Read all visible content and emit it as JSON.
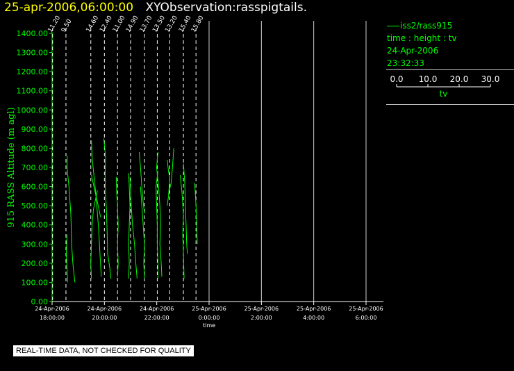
{
  "header": {
    "date_time": "25-apr-2006,06:00:00",
    "name": "XYObservation:rasspigtails."
  },
  "legend": {
    "series": "iss2/rass915",
    "axes": "time : height : tv",
    "date": "24-Apr-2006",
    "time": "23:32:33",
    "scale_ticks": [
      "0.0",
      "10.0",
      "20.0",
      "30.0"
    ],
    "scale_label": "tv"
  },
  "footer": {
    "notice": "REAL-TIME DATA, NOT CHECKED FOR QUALITY"
  },
  "colors": {
    "background": "#000000",
    "series": "#00ff00",
    "grid": "#ffffff",
    "title_date": "#ffff00"
  },
  "chart_data": {
    "type": "line",
    "ylabel": "915 RASS Altitude (m agl)",
    "xlabel": "time",
    "ylim": [
      0,
      1400
    ],
    "y_ticks": [
      "0.00",
      "100.00",
      "200.00",
      "300.00",
      "400.00",
      "500.00",
      "600.00",
      "700.00",
      "800.00",
      "900.00",
      "1000.00",
      "1100.00",
      "1200.00",
      "1300.00",
      "1400.00"
    ],
    "x_ticks": [
      {
        "date": "24-Apr-2006",
        "time": "18:00:00",
        "hours": 0
      },
      {
        "date": "24-Apr-2006",
        "time": "20:00:00",
        "hours": 2
      },
      {
        "date": "24-Apr-2006",
        "time": "22:00:00",
        "hours": 4
      },
      {
        "date": "25-Apr-2006",
        "time": "0:00:00",
        "hours": 6
      },
      {
        "date": "25-Apr-2006",
        "time": "2:00:00",
        "hours": 8
      },
      {
        "date": "25-Apr-2006",
        "time": "4:00:00",
        "hours": 10
      },
      {
        "date": "25-Apr-2006",
        "time": "6:00:00",
        "hours": 12
      }
    ],
    "xlim_hours": [
      0,
      12
    ],
    "grid": true,
    "profile_base_values": [
      {
        "label": "11.20",
        "hours": 0.02
      },
      {
        "label": "9.50",
        "hours": 0.53
      },
      {
        "label": "14.60",
        "hours": 1.48
      },
      {
        "label": "12.40",
        "hours": 2.0
      },
      {
        "label": "11.00",
        "hours": 2.5
      },
      {
        "label": "14.90",
        "hours": 3.0
      },
      {
        "label": "13.70",
        "hours": 3.53
      },
      {
        "label": "13.50",
        "hours": 4.02
      },
      {
        "label": "13.20",
        "hours": 4.5
      },
      {
        "label": "15.40",
        "hours": 5.02
      },
      {
        "label": "15.80",
        "hours": 5.5
      }
    ],
    "tv_per_hour": 20,
    "series": [
      {
        "base_hours": 0.02,
        "points": [
          [
            11.2,
            760
          ],
          [
            11.0,
            700
          ],
          [
            12.5,
            600
          ],
          [
            14.0,
            450
          ],
          [
            14.5,
            300
          ],
          [
            15.5,
            200
          ],
          [
            17.0,
            100
          ]
        ]
      },
      {
        "base_hours": 0.02,
        "points": [
          [
            11.0,
            350
          ],
          [
            10.5,
            250
          ],
          [
            11.5,
            100
          ]
        ]
      },
      {
        "base_hours": 0.53,
        "points": [
          [
            19.5,
            660
          ],
          [
            22.0,
            580
          ],
          [
            24.0,
            520
          ],
          [
            26.5,
            440
          ]
        ]
      },
      {
        "base_hours": 1.48,
        "points": [
          [
            0.5,
            840
          ],
          [
            1.0,
            750
          ],
          [
            2.5,
            650
          ],
          [
            4.0,
            550
          ],
          [
            5.0,
            460
          ],
          [
            5.5,
            420
          ],
          [
            6.0,
            380
          ],
          [
            7.0,
            250
          ],
          [
            8.0,
            130
          ]
        ]
      },
      {
        "base_hours": 1.48,
        "points": [
          [
            5.0,
            580
          ],
          [
            2.0,
            480
          ],
          [
            1.0,
            400
          ],
          [
            0.5,
            300
          ],
          [
            0.0,
            200
          ],
          [
            0.5,
            120
          ]
        ]
      },
      {
        "base_hours": 2.0,
        "points": [
          [
            -0.5,
            850
          ],
          [
            1.0,
            750
          ],
          [
            0.5,
            650
          ],
          [
            1.0,
            550
          ],
          [
            1.5,
            480
          ],
          [
            2.0,
            380
          ],
          [
            2.5,
            250
          ],
          [
            4.0,
            180
          ],
          [
            5.0,
            120
          ]
        ]
      },
      {
        "base_hours": 2.5,
        "points": [
          [
            -1.0,
            650
          ],
          [
            -0.5,
            550
          ],
          [
            0.0,
            500
          ],
          [
            0.5,
            400
          ],
          [
            0.0,
            300
          ],
          [
            0.5,
            200
          ],
          [
            0.0,
            130
          ]
        ]
      },
      {
        "base_hours": 3.0,
        "points": [
          [
            -1.5,
            670
          ],
          [
            -1.0,
            600
          ],
          [
            -0.5,
            500
          ],
          [
            -1.0,
            400
          ],
          [
            -1.5,
            300
          ],
          [
            -1.0,
            200
          ],
          [
            -1.5,
            120
          ]
        ]
      },
      {
        "base_hours": 3.0,
        "points": [
          [
            -0.5,
            650
          ],
          [
            0.5,
            500
          ],
          [
            1.5,
            400
          ],
          [
            3.0,
            300
          ],
          [
            4.0,
            200
          ],
          [
            5.0,
            120
          ]
        ]
      },
      {
        "base_hours": 3.53,
        "points": [
          [
            -4.0,
            780
          ],
          [
            -3.0,
            700
          ],
          [
            -2.0,
            600
          ],
          [
            -1.0,
            520
          ],
          [
            0.0,
            460
          ]
        ]
      },
      {
        "base_hours": 3.53,
        "points": [
          [
            -3.0,
            600
          ],
          [
            -2.0,
            500
          ],
          [
            -1.0,
            400
          ],
          [
            0.0,
            300
          ],
          [
            -0.5,
            200
          ],
          [
            0.0,
            120
          ]
        ]
      },
      {
        "base_hours": 4.02,
        "points": [
          [
            0.5,
            780
          ],
          [
            -0.5,
            700
          ],
          [
            1.0,
            600
          ],
          [
            2.0,
            500
          ],
          [
            2.5,
            400
          ],
          [
            2.0,
            300
          ],
          [
            3.0,
            200
          ],
          [
            3.5,
            130
          ]
        ]
      },
      {
        "base_hours": 4.02,
        "points": [
          [
            0.5,
            680
          ],
          [
            -1.0,
            600
          ],
          [
            -0.5,
            500
          ],
          [
            0.0,
            400
          ],
          [
            0.0,
            300
          ],
          [
            0.5,
            200
          ],
          [
            0.5,
            120
          ]
        ]
      },
      {
        "base_hours": 4.5,
        "points": [
          [
            -2.0,
            740
          ],
          [
            -1.0,
            680
          ],
          [
            0.0,
            640
          ],
          [
            -0.5,
            600
          ],
          [
            -1.0,
            550
          ],
          [
            -2.0,
            500
          ]
        ]
      },
      {
        "base_hours": 4.5,
        "points": [
          [
            3.0,
            800
          ],
          [
            2.0,
            700
          ],
          [
            1.0,
            620
          ],
          [
            -1.0,
            560
          ]
        ]
      },
      {
        "base_hours": 5.02,
        "points": [
          [
            -2.5,
            660
          ],
          [
            -1.0,
            560
          ],
          [
            0.0,
            450
          ],
          [
            -0.5,
            350
          ],
          [
            0.0,
            250
          ],
          [
            0.5,
            120
          ]
        ]
      },
      {
        "base_hours": 5.02,
        "points": [
          [
            0.0,
            720
          ],
          [
            1.0,
            620
          ],
          [
            1.5,
            500
          ],
          [
            2.0,
            400
          ],
          [
            2.5,
            300
          ],
          [
            3.0,
            250
          ]
        ]
      },
      {
        "base_hours": 5.5,
        "points": [
          [
            -1.0,
            620
          ],
          [
            0.0,
            500
          ],
          [
            0.5,
            400
          ],
          [
            1.0,
            300
          ]
        ]
      }
    ]
  }
}
